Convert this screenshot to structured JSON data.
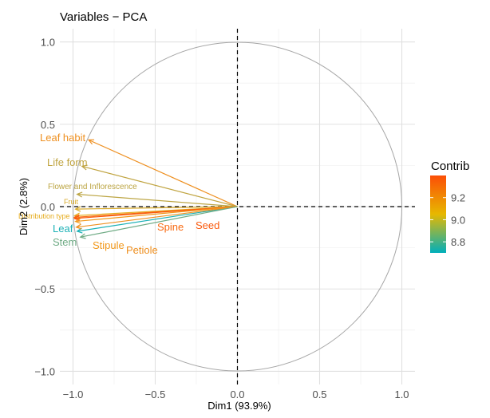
{
  "chart_data": {
    "type": "scatter",
    "subtype": "pca-variables-correlation-circle",
    "title": "Variables − PCA",
    "xlabel": "Dim1 (93.9%)",
    "ylabel": "Dim2 (2.8%)",
    "xlim": [
      -1.08,
      1.08
    ],
    "ylim": [
      -1.08,
      1.08
    ],
    "xticks": [
      -1.0,
      -0.5,
      0.0,
      0.5,
      1.0
    ],
    "yticks": [
      -1.0,
      -0.5,
      0.0,
      0.5,
      1.0
    ],
    "xtick_labels": [
      "−1.0",
      "−0.5",
      "0.0",
      "0.5",
      "1.0"
    ],
    "ytick_labels": [
      "−1.0",
      "−0.5",
      "0.0",
      "0.5",
      "1.0"
    ],
    "grid": true,
    "legend": {
      "title": "Contrib",
      "position": "right",
      "ticks": [
        8.8,
        9.0,
        9.2
      ],
      "tick_labels": [
        "8.8",
        "9.0",
        "9.2"
      ],
      "range": [
        8.7,
        9.4
      ],
      "colors": [
        "#00AFBB",
        "#E7B800",
        "#FC4E07"
      ]
    },
    "variables": [
      {
        "name": "Leaf habit",
        "x": -0.905,
        "y": 0.405,
        "contrib": 9.1,
        "color": "#ee8f1f"
      },
      {
        "name": "Life form",
        "x": -0.945,
        "y": 0.245,
        "contrib": 8.98,
        "color": "#c0a440"
      },
      {
        "name": "Flower and Inflorescence",
        "x": -0.975,
        "y": 0.075,
        "contrib": 8.97,
        "color": "#bca543"
      },
      {
        "name": "Fruit",
        "x": -0.985,
        "y": -0.015,
        "contrib": 9.02,
        "color": "#d8aa2a"
      },
      {
        "name": "Distribution type",
        "x": -0.99,
        "y": -0.055,
        "contrib": 9.05,
        "color": "#e6ad20"
      },
      {
        "name": "Spine",
        "x": -0.992,
        "y": -0.065,
        "contrib": 9.35,
        "color": "#f86a12"
      },
      {
        "name": "Seed",
        "x": -0.992,
        "y": -0.072,
        "contrib": 9.38,
        "color": "#fa5a0d"
      },
      {
        "name": "Leaf",
        "x": -0.975,
        "y": -0.15,
        "contrib": 8.75,
        "color": "#1cb1b6"
      },
      {
        "name": "Stipule",
        "x": -0.985,
        "y": -0.09,
        "contrib": 9.15,
        "color": "#f2981a"
      },
      {
        "name": "Petiole",
        "x": -0.98,
        "y": -0.125,
        "contrib": 9.1,
        "color": "#ee8f1f"
      },
      {
        "name": "Stem",
        "x": -0.955,
        "y": -0.185,
        "contrib": 8.85,
        "color": "#6fab85"
      }
    ]
  }
}
